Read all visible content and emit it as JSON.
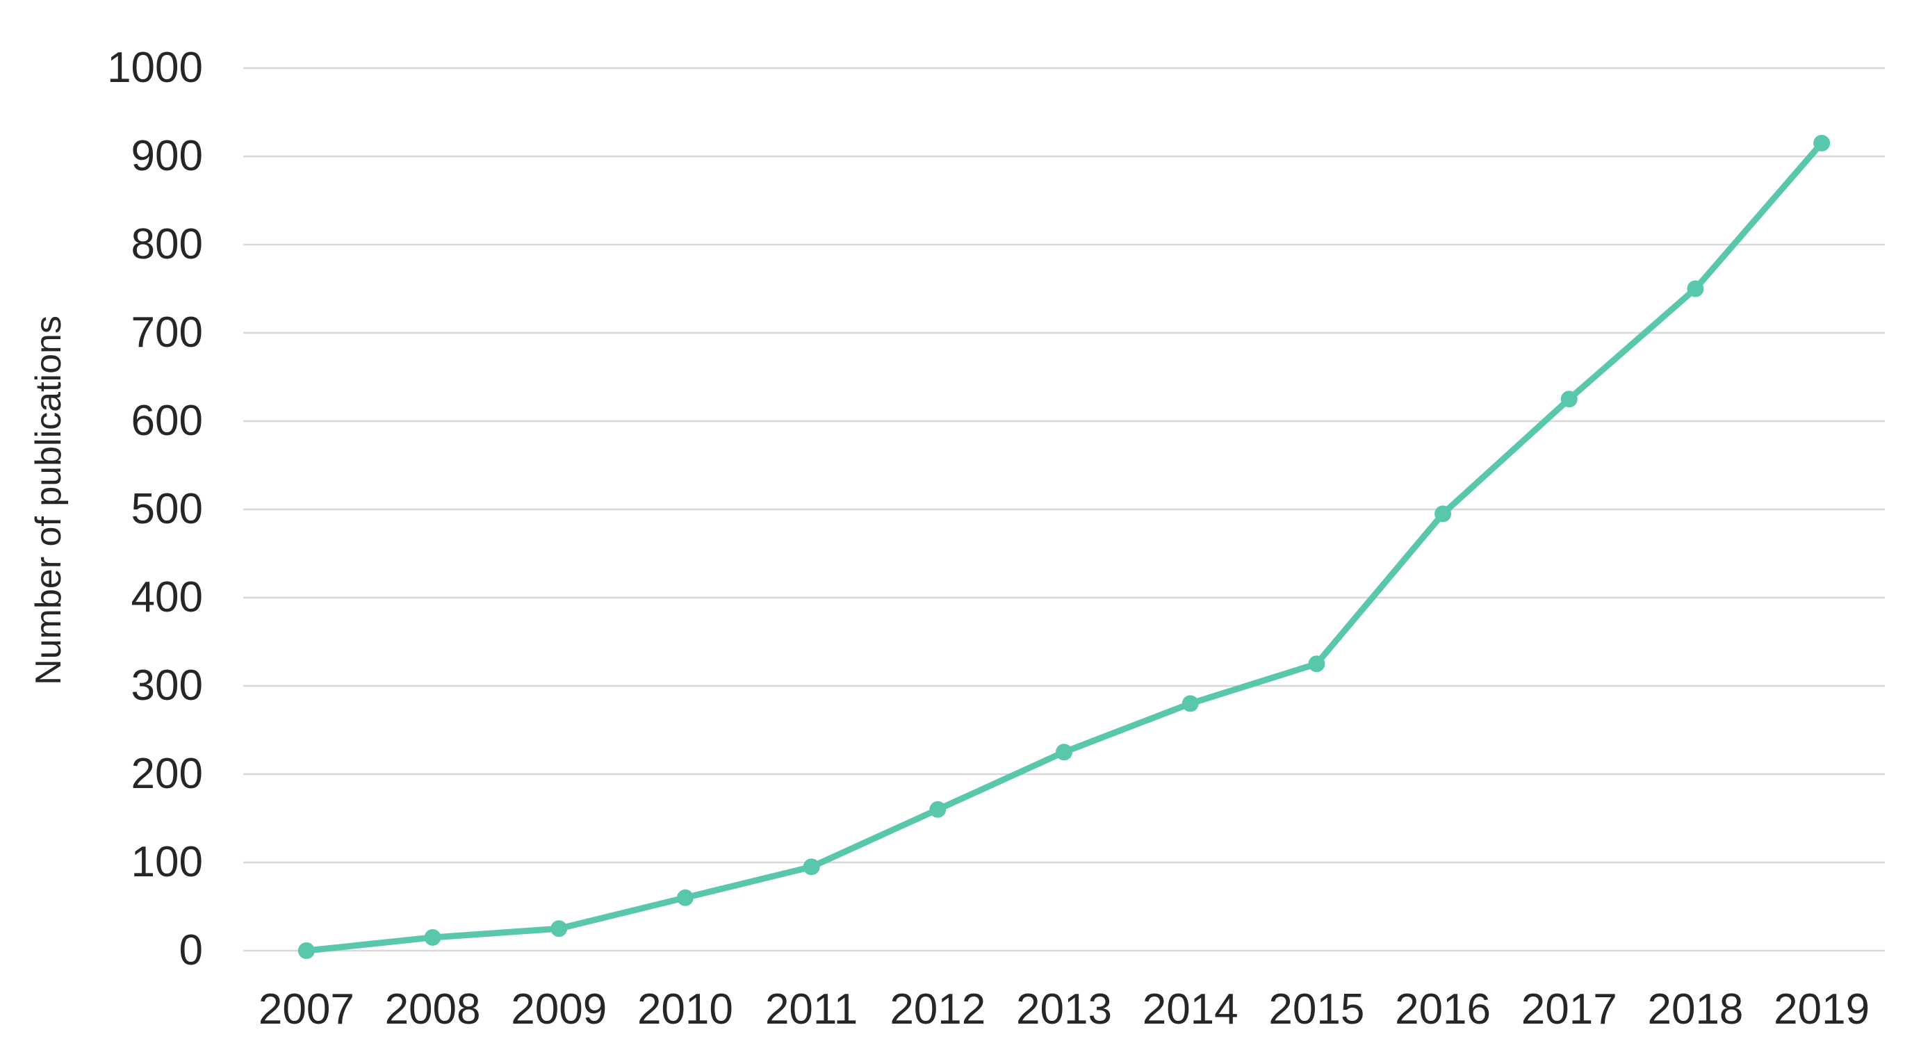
{
  "page": {
    "background_color": "#FFFFFF",
    "text_color": "#262626",
    "gridline_color": "#D8D8D8",
    "accent_color": "#58C7AC"
  },
  "chart_data": {
    "type": "line",
    "title": "",
    "xlabel": "",
    "ylabel": "Number of publications",
    "categories": [
      "2007",
      "2008",
      "2009",
      "2010",
      "2011",
      "2012",
      "2013",
      "2014",
      "2015",
      "2016",
      "2017",
      "2018",
      "2019"
    ],
    "series": [
      {
        "name": "Number of publications",
        "color": "#58C7AC",
        "marker": "circle",
        "values": [
          0,
          15,
          25,
          60,
          95,
          160,
          225,
          280,
          325,
          495,
          625,
          750,
          915
        ]
      }
    ],
    "ylim": [
      0,
      1000
    ],
    "ytick_step": 100,
    "yticks": [
      0,
      100,
      200,
      300,
      400,
      500,
      600,
      700,
      800,
      900,
      1000
    ],
    "grid": "horizontal",
    "legend_position": "none"
  }
}
